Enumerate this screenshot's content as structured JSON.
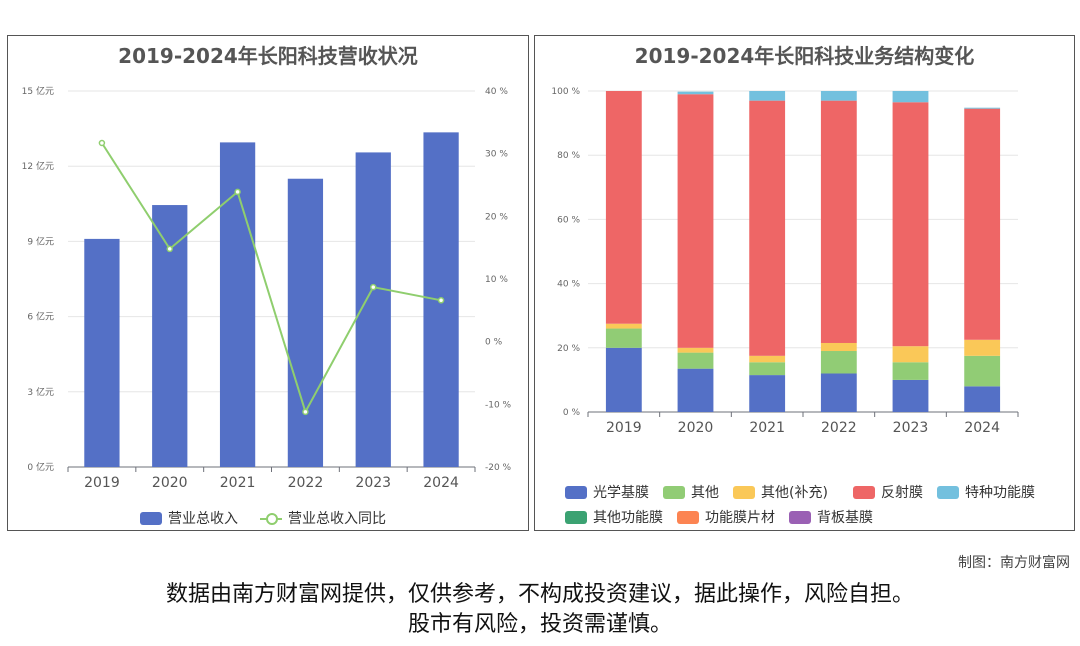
{
  "chart_data": [
    {
      "type": "bar",
      "title": "2019-2024年长阳科技营收状况",
      "categories": [
        "2019",
        "2020",
        "2021",
        "2022",
        "2023",
        "2024"
      ],
      "y_left": {
        "ticks": [
          "0 亿元",
          "3 亿元",
          "6 亿元",
          "9 亿元",
          "12 亿元",
          "15 亿元"
        ],
        "range": [
          0,
          15
        ],
        "unit": "亿元"
      },
      "y_right": {
        "ticks": [
          "-20 %",
          "-10 %",
          "0 %",
          "10 %",
          "20 %",
          "30 %",
          "40 %"
        ],
        "range": [
          -20,
          40
        ],
        "unit": "%"
      },
      "series": [
        {
          "name": "营业总收入",
          "type": "bar",
          "axis": "left",
          "color": "#5470c6",
          "values": [
            9.1,
            10.45,
            12.95,
            11.5,
            12.55,
            13.35
          ]
        },
        {
          "name": "营业总收入同比",
          "type": "line",
          "axis": "right",
          "color": "#8fce6e",
          "values": [
            31.7,
            14.8,
            23.9,
            -11.2,
            8.7,
            6.6
          ]
        }
      ],
      "grid": true,
      "legend_position": "bottom"
    },
    {
      "type": "bar",
      "stacked": true,
      "title": "2019-2024年长阳科技业务结构变化",
      "categories": [
        "2019",
        "2020",
        "2021",
        "2022",
        "2023",
        "2024"
      ],
      "y_ticks": [
        "0 %",
        "20 %",
        "40 %",
        "60 %",
        "80 %",
        "100 %"
      ],
      "ylim": [
        0,
        100
      ],
      "series": [
        {
          "name": "光学基膜",
          "color": "#5470c6",
          "values": [
            20.0,
            13.5,
            11.5,
            12.0,
            10.0,
            8.0
          ]
        },
        {
          "name": "其他",
          "color": "#91cc75",
          "values": [
            6.0,
            5.0,
            4.0,
            7.0,
            5.5,
            9.5
          ]
        },
        {
          "name": "其他(补充)",
          "color": "#fac858",
          "values": [
            1.5,
            1.5,
            2.0,
            2.5,
            5.0,
            5.0
          ]
        },
        {
          "name": "反射膜",
          "color": "#ee6666",
          "values": [
            72.5,
            79.0,
            79.5,
            75.5,
            76.0,
            72.0
          ]
        },
        {
          "name": "特种功能膜",
          "color": "#73c0de",
          "values": [
            0,
            0.8,
            3.0,
            3.0,
            3.5,
            0.3
          ]
        },
        {
          "name": "其他功能膜",
          "color": "#3ba272",
          "values": [
            0,
            0,
            0,
            0,
            0,
            0
          ]
        },
        {
          "name": "功能膜片材",
          "color": "#fc8452",
          "values": [
            0,
            0,
            0,
            0,
            0,
            0
          ]
        },
        {
          "name": "背板基膜",
          "color": "#9a60b4",
          "values": [
            0,
            0,
            0,
            0,
            0,
            0
          ]
        }
      ],
      "grid": true,
      "legend_position": "bottom"
    }
  ],
  "credit": "制图：南方财富网",
  "disclaimer_line1": "数据由南方财富网提供，仅供参考，不构成投资建议，据此操作，风险自担。",
  "disclaimer_line2": "股市有风险，投资需谨慎。"
}
